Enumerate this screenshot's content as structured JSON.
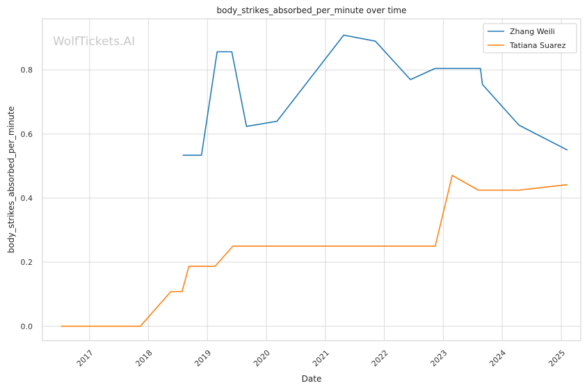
{
  "chart_data": {
    "type": "line",
    "title": "body_strikes_absorbed_per_minute over time",
    "xlabel": "Date",
    "ylabel": "body_strikes_absorbed_per_minute",
    "watermark": "WolfTickets.AI",
    "xlim": [
      "2016-03-15",
      "2025-05-01"
    ],
    "ylim": [
      -0.045,
      0.96
    ],
    "x_ticks": [
      "2017",
      "2018",
      "2019",
      "2020",
      "2021",
      "2022",
      "2023",
      "2024",
      "2025"
    ],
    "y_ticks": [
      "0.0",
      "0.2",
      "0.4",
      "0.6",
      "0.8"
    ],
    "y_tick_values": [
      0.0,
      0.2,
      0.4,
      0.6,
      0.8
    ],
    "grid": true,
    "legend_position": "top-right",
    "series": [
      {
        "name": "Zhang Weili",
        "color": "#1f77b4",
        "points": [
          [
            "2018-08-01",
            0.534
          ],
          [
            "2018-11-25",
            0.534
          ],
          [
            "2019-03-02",
            0.857
          ],
          [
            "2019-06-01",
            0.857
          ],
          [
            "2019-08-31",
            0.624
          ],
          [
            "2020-03-07",
            0.64
          ],
          [
            "2021-04-24",
            0.909
          ],
          [
            "2021-11-06",
            0.89
          ],
          [
            "2022-06-11",
            0.77
          ],
          [
            "2022-11-12",
            0.805
          ],
          [
            "2023-08-19",
            0.805
          ],
          [
            "2023-08-31",
            0.755
          ],
          [
            "2024-04-13",
            0.628
          ],
          [
            "2025-02-08",
            0.55
          ]
        ]
      },
      {
        "name": "Tatiana Suarez",
        "color": "#ff7f0e",
        "points": [
          [
            "2016-07-08",
            0.0
          ],
          [
            "2017-11-11",
            0.0
          ],
          [
            "2018-05-19",
            0.108
          ],
          [
            "2018-07-28",
            0.108
          ],
          [
            "2018-09-08",
            0.187
          ],
          [
            "2019-02-17",
            0.187
          ],
          [
            "2019-06-08",
            0.25
          ],
          [
            "2022-11-12",
            0.25
          ],
          [
            "2023-02-25",
            0.471
          ],
          [
            "2023-08-05",
            0.425
          ],
          [
            "2024-04-13",
            0.425
          ],
          [
            "2025-02-08",
            0.442
          ]
        ]
      }
    ]
  }
}
